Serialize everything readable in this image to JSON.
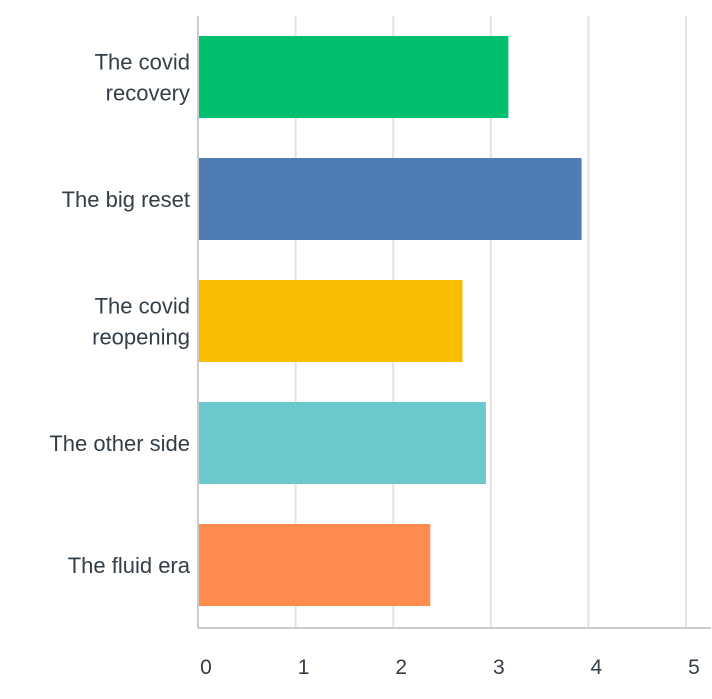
{
  "chart_data": {
    "type": "bar",
    "orientation": "horizontal",
    "categories": [
      [
        "The covid",
        "recovery"
      ],
      [
        "The big reset"
      ],
      [
        "The covid",
        "reopening"
      ],
      [
        "The other side"
      ],
      [
        "The fluid era"
      ]
    ],
    "values": [
      3.18,
      3.93,
      2.71,
      2.95,
      2.38
    ],
    "colors": [
      "#00bf6f",
      "#507cb6",
      "#f9be00",
      "#6bc8cd",
      "#ff8b4f"
    ],
    "xlim": [
      0,
      5
    ],
    "xticks": [
      "0",
      "1",
      "2",
      "3",
      "4",
      "5"
    ],
    "grid": true,
    "title": "",
    "xlabel": "",
    "ylabel": ""
  }
}
